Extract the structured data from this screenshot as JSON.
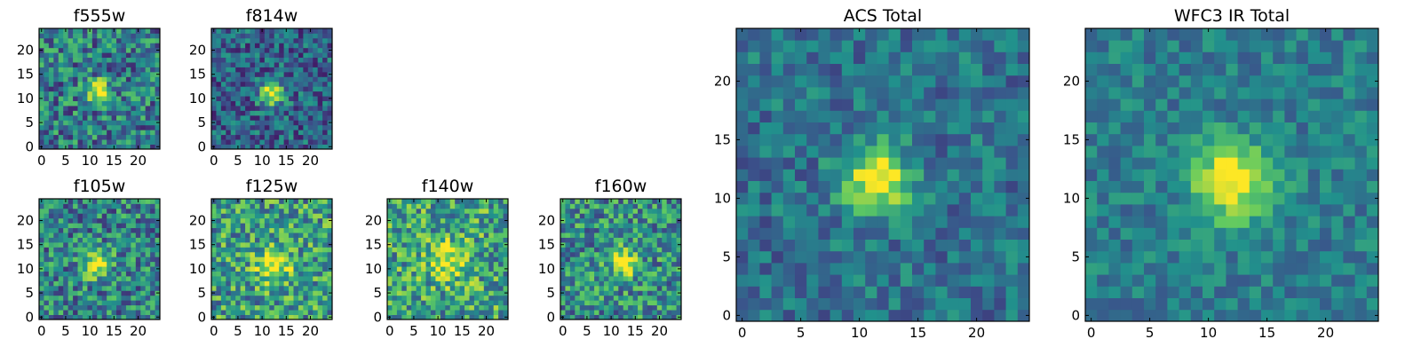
{
  "chart_data": [
    {
      "type": "heatmap",
      "title": "f555w",
      "x_ticks": [
        "0",
        "5",
        "10",
        "15",
        "20"
      ],
      "y_ticks": [
        "0",
        "5",
        "10",
        "15",
        "20"
      ],
      "xlim": [
        0,
        25
      ],
      "ylim": [
        0,
        25
      ],
      "blob": {
        "x": 12,
        "y": 11.5,
        "strength": 0.65,
        "spread": 1.6
      },
      "noise": 0.3,
      "base": 0.42,
      "seed": 11
    },
    {
      "type": "heatmap",
      "title": "f814w",
      "x_ticks": [
        "0",
        "5",
        "10",
        "15",
        "20"
      ],
      "y_ticks": [
        "0",
        "5",
        "10",
        "15",
        "20"
      ],
      "xlim": [
        0,
        25
      ],
      "ylim": [
        0,
        25
      ],
      "blob": {
        "x": 12,
        "y": 11,
        "strength": 0.7,
        "spread": 1.7
      },
      "noise": 0.24,
      "base": 0.32,
      "seed": 23
    },
    {
      "type": "heatmap",
      "title": "f105w",
      "x_ticks": [
        "0",
        "5",
        "10",
        "15",
        "20"
      ],
      "y_ticks": [
        "0",
        "5",
        "10",
        "15",
        "20"
      ],
      "xlim": [
        0,
        25
      ],
      "ylim": [
        0,
        25
      ],
      "blob": {
        "x": 11.5,
        "y": 11,
        "strength": 0.55,
        "spread": 2.0
      },
      "noise": 0.3,
      "base": 0.45,
      "seed": 37
    },
    {
      "type": "heatmap",
      "title": "f125w",
      "x_ticks": [
        "0",
        "5",
        "10",
        "15",
        "20"
      ],
      "y_ticks": [
        "0",
        "5",
        "10",
        "15",
        "20"
      ],
      "xlim": [
        0,
        25
      ],
      "ylim": [
        0,
        25
      ],
      "blob": {
        "x": 12.5,
        "y": 11,
        "strength": 0.45,
        "spread": 2.6
      },
      "noise": 0.32,
      "base": 0.55,
      "seed": 41
    },
    {
      "type": "heatmap",
      "title": "f140w",
      "x_ticks": [
        "0",
        "5",
        "10",
        "15",
        "20"
      ],
      "y_ticks": [
        "0",
        "5",
        "10",
        "15",
        "20"
      ],
      "xlim": [
        0,
        25
      ],
      "ylim": [
        0,
        25
      ],
      "blob": {
        "x": 12,
        "y": 11.5,
        "strength": 0.4,
        "spread": 2.8
      },
      "noise": 0.32,
      "base": 0.58,
      "seed": 53
    },
    {
      "type": "heatmap",
      "title": "f160w",
      "x_ticks": [
        "0",
        "5",
        "10",
        "15",
        "20"
      ],
      "y_ticks": [
        "0",
        "5",
        "10",
        "15",
        "20"
      ],
      "xlim": [
        0,
        25
      ],
      "ylim": [
        0,
        25
      ],
      "blob": {
        "x": 12.5,
        "y": 11.5,
        "strength": 0.55,
        "spread": 2.0
      },
      "noise": 0.3,
      "base": 0.5,
      "seed": 67
    },
    {
      "type": "heatmap",
      "title": "ACS Total",
      "x_ticks": [
        "0",
        "5",
        "10",
        "15",
        "20"
      ],
      "y_ticks": [
        "0",
        "5",
        "10",
        "15",
        "20"
      ],
      "xlim": [
        0,
        25
      ],
      "ylim": [
        0,
        25
      ],
      "blob": {
        "x": 11.5,
        "y": 11.5,
        "strength": 0.65,
        "spread": 2.0
      },
      "noise": 0.18,
      "base": 0.38,
      "seed": 79
    },
    {
      "type": "heatmap",
      "title": "WFC3 IR Total",
      "x_ticks": [
        "0",
        "5",
        "10",
        "15",
        "20"
      ],
      "y_ticks": [
        "0",
        "5",
        "10",
        "15",
        "20"
      ],
      "xlim": [
        0,
        25
      ],
      "ylim": [
        0,
        25
      ],
      "blob": {
        "x": 12,
        "y": 11.5,
        "strength": 0.65,
        "spread": 2.3
      },
      "noise": 0.15,
      "base": 0.42,
      "seed": 97
    }
  ],
  "colormap": [
    "#440154",
    "#3b528b",
    "#21918c",
    "#5ec962",
    "#fde725"
  ]
}
